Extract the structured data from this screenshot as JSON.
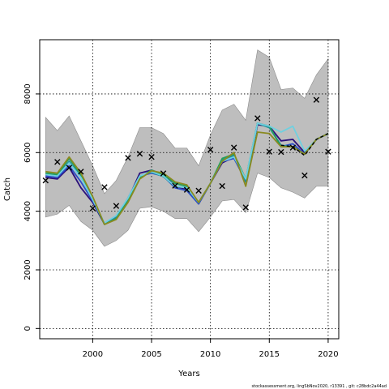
{
  "chart_data": {
    "type": "line",
    "title": "",
    "xlabel": "Years",
    "ylabel": "Catch",
    "xlim": [
      1995.5,
      2020.9
    ],
    "ylim": [
      -350,
      9850
    ],
    "x_ticks": [
      2000,
      2005,
      2010,
      2015,
      2020
    ],
    "y_ticks": [
      0,
      2000,
      4000,
      6000,
      8000
    ],
    "grid": true,
    "legend": "none",
    "band": {
      "color": "#bebebe",
      "x": [
        1996,
        1997,
        1998,
        1999,
        2000,
        2001,
        2002,
        2003,
        2004,
        2005,
        2006,
        2007,
        2008,
        2009,
        2010,
        2011,
        2012,
        2013,
        2014,
        2015,
        2016,
        2017,
        2018,
        2019,
        2020
      ],
      "upper": [
        7200,
        6750,
        7250,
        6400,
        5550,
        4600,
        5050,
        5850,
        6850,
        6850,
        6650,
        6150,
        6150,
        5550,
        6600,
        7450,
        7650,
        7100,
        9500,
        9250,
        8150,
        8200,
        7850,
        8650,
        9200
      ],
      "lower": [
        3800,
        3900,
        4200,
        3650,
        3350,
        2800,
        3000,
        3350,
        4100,
        4150,
        4000,
        3750,
        3750,
        3300,
        3800,
        4350,
        4400,
        3950,
        5300,
        5150,
        4800,
        4650,
        4450,
        4850,
        4850
      ]
    },
    "observed": {
      "marker": "x",
      "color": "#000000",
      "x": [
        1996,
        1997,
        1998,
        1999,
        2000,
        2001,
        2002,
        2003,
        2004,
        2005,
        2006,
        2007,
        2008,
        2009,
        2010,
        2011,
        2012,
        2013,
        2014,
        2015,
        2016,
        2017,
        2018,
        2019,
        2020
      ],
      "y": [
        5050,
        5680,
        5480,
        5350,
        4100,
        4820,
        4180,
        5820,
        5960,
        5850,
        5290,
        4870,
        4730,
        4700,
        6100,
        4860,
        6170,
        4130,
        7170,
        6030,
        6020,
        6170,
        5220,
        7800,
        6030
      ]
    },
    "series": [
      {
        "color": "#2b0f7a",
        "x": [
          1996,
          1997,
          1998,
          1999,
          2000,
          2001,
          2002,
          2003,
          2004,
          2005,
          2006,
          2007,
          2008,
          2009,
          2010,
          2011,
          2012,
          2013,
          2014,
          2015,
          2016,
          2017,
          2018,
          2019,
          2020
        ],
        "y": [
          5150,
          5100,
          5500,
          4800,
          4300,
          3560,
          3750,
          4400,
          5300,
          5400,
          5250,
          4850,
          4750,
          4250,
          4950,
          5650,
          5850,
          5000,
          6950,
          6900,
          6400,
          6450,
          6000,
          6450,
          6650
        ]
      },
      {
        "color": "#2b4dc8",
        "x": [
          1996,
          1997,
          1998,
          1999,
          2000,
          2001,
          2002,
          2003,
          2004,
          2005,
          2006,
          2007,
          2008,
          2009,
          2010,
          2011,
          2012,
          2013,
          2014,
          2015,
          2016,
          2017,
          2018,
          2019,
          2020
        ],
        "y": [
          5200,
          5150,
          5550,
          5000,
          4350,
          3580,
          3800,
          4450,
          5200,
          5300,
          5200,
          4800,
          4700,
          4250,
          4950,
          5700,
          5800,
          5050,
          7000,
          6900,
          6200,
          6300,
          5950,
          6450,
          6650
        ]
      },
      {
        "color": "#1f8f9a",
        "x": [
          1996,
          1997,
          1998,
          1999,
          2000,
          2001,
          2002,
          2003,
          2004,
          2005,
          2006,
          2007,
          2008,
          2009,
          2010,
          2011,
          2012,
          2013,
          2014,
          2015,
          2016,
          2017,
          2018,
          2019,
          2020
        ],
        "y": [
          5300,
          5200,
          5700,
          5200,
          4400,
          3560,
          3780,
          4420,
          5200,
          5330,
          5180,
          4850,
          4800,
          4300,
          4950,
          5750,
          5900,
          5000,
          7000,
          6850,
          6250,
          6200,
          5950,
          6450,
          6650
        ]
      },
      {
        "color": "#22a05c",
        "x": [
          1996,
          1997,
          1998,
          1999,
          2000,
          2001,
          2002,
          2003,
          2004,
          2005,
          2006,
          2007,
          2008,
          2009,
          2010,
          2011,
          2012,
          2013,
          2014,
          2015,
          2016,
          2017,
          2018,
          2019,
          2020
        ],
        "y": [
          5300,
          5250,
          5800,
          5250,
          4450,
          3550,
          3750,
          4350,
          5150,
          5400,
          5250,
          4950,
          4850,
          4300,
          4950,
          5800,
          5950,
          5100,
          7000,
          6900,
          6200,
          6200,
          5950,
          6450,
          6650
        ]
      },
      {
        "color": "#6fd0e0",
        "x": [
          1996,
          1997,
          1998,
          1999,
          2000,
          2001,
          2002,
          2003,
          2004,
          2005,
          2006,
          2007,
          2008,
          2009,
          2010,
          2011,
          2012,
          2013,
          2014,
          2015,
          2016,
          2017,
          2018,
          2019,
          2020
        ],
        "y": [
          5250,
          5200,
          5650,
          5150,
          4400,
          3600,
          3850,
          4450,
          5200,
          5350,
          5200,
          4850,
          4800,
          4300,
          4950,
          5700,
          5850,
          5100,
          7000,
          6900,
          6700,
          6900,
          6050,
          6450,
          6650
        ]
      },
      {
        "color": "#8a8a20",
        "x": [
          1996,
          1997,
          1998,
          1999,
          2000,
          2001,
          2002,
          2003,
          2004,
          2005,
          2006,
          2007,
          2008,
          2009,
          2010,
          2011,
          2012,
          2013,
          2014,
          2015,
          2016,
          2017,
          2018,
          2019,
          2020
        ],
        "y": [
          5350,
          5300,
          5850,
          5300,
          4500,
          3550,
          3720,
          4300,
          5100,
          5380,
          5300,
          5000,
          4900,
          4300,
          4950,
          5700,
          6000,
          4850,
          6700,
          6650,
          6200,
          6200,
          5950,
          6450,
          6650
        ]
      }
    ],
    "median": {
      "color": "#000000",
      "dash": "dashed",
      "x": [
        2016,
        2017,
        2018,
        2019,
        2020
      ],
      "y": [
        6250,
        6200,
        5900,
        6450,
        6650
      ]
    }
  },
  "footnote": "stockassessment.org, lingSbNov2020, r13391 , git: c28bdc2a44ad"
}
